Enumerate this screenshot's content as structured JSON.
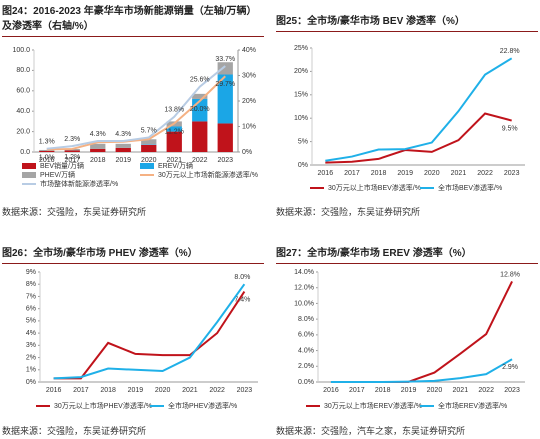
{
  "chart_data": [
    {
      "type": "bar",
      "title": "图24：2016-2023 年豪华车市场新能源销量（左轴/万辆）及渗透率（右轴/%）",
      "source": "数据来源：交强险，东吴证券研究所",
      "categories": [
        "2016",
        "2017",
        "2018",
        "2019",
        "2020",
        "2021",
        "2022",
        "2023"
      ],
      "series": [
        {
          "name": "BEV销量/万辆",
          "color": "#c0131b",
          "values": [
            1,
            1.5,
            3,
            4,
            7,
            20,
            30,
            28
          ]
        },
        {
          "name": "EREV/万辆",
          "color": "#1ba6e6",
          "values": [
            0,
            0,
            0,
            0,
            0.5,
            5,
            22,
            48
          ]
        },
        {
          "name": "PHEV/万辆",
          "color": "#a5a5a5",
          "values": [
            1,
            1.5,
            5,
            4,
            5,
            5,
            5,
            12
          ]
        },
        {
          "name": "30万元以上市场新能源渗透率/%",
          "type": "line",
          "axis": "y2",
          "color": "#f5b183",
          "values": [
            1.0,
            1.2,
            3.8,
            4.0,
            5.0,
            11.2,
            20.0,
            29.7
          ],
          "value_labels": [
            "1.0%",
            "1.2%",
            null,
            null,
            null,
            "11.2%",
            "20.0%",
            "29.7%"
          ]
        },
        {
          "name": "市场整体新能源渗透率/%",
          "type": "line",
          "axis": "y2",
          "color": "#b8cce4",
          "values": [
            1.3,
            2.3,
            4.3,
            4.3,
            5.7,
            13.8,
            25.6,
            33.7
          ],
          "value_labels": [
            "1.3%",
            "2.3%",
            "4.3%",
            "4.3%",
            "5.7%",
            "13.8%",
            "25.6%",
            "33.7%"
          ]
        }
      ],
      "ylim": [
        0,
        100
      ],
      "yticks": [
        {
          "value": 0,
          "label": "0.0"
        },
        {
          "value": 20,
          "label": "20.0"
        },
        {
          "value": 40,
          "label": "40.0"
        },
        {
          "value": 60,
          "label": "60.0"
        },
        {
          "value": 80,
          "label": "80.0"
        },
        {
          "value": 100,
          "label": "100.0"
        }
      ],
      "y2lim": [
        0,
        40
      ],
      "y2ticks": [
        {
          "value": 0,
          "label": "0%"
        },
        {
          "value": 10,
          "label": "10%"
        },
        {
          "value": 20,
          "label": "20%"
        },
        {
          "value": 30,
          "label": "30%"
        },
        {
          "value": 40,
          "label": "40%"
        }
      ],
      "grid": false
    },
    {
      "type": "line",
      "title": "图25：全市场/豪华市场 BEV 渗透率（%）",
      "source": "数据来源：交强险，东吴证券研究所",
      "categories": [
        "2016",
        "2017",
        "2018",
        "2019",
        "2020",
        "2021",
        "2022",
        "2023"
      ],
      "series": [
        {
          "name": "30万元以上市场BEV渗透率/%",
          "color": "#c0131b",
          "values": [
            0.5,
            0.7,
            1.3,
            3.2,
            2.8,
            5.3,
            11.0,
            9.5
          ],
          "value_labels": [
            null,
            null,
            null,
            null,
            null,
            null,
            null,
            "9.5%"
          ]
        },
        {
          "name": "全市场BEV渗透率/%",
          "color": "#1fb0e8",
          "values": [
            0.9,
            1.8,
            3.3,
            3.4,
            4.8,
            11.5,
            19.3,
            22.8
          ],
          "value_labels": [
            null,
            null,
            null,
            null,
            null,
            null,
            null,
            "22.8%"
          ]
        }
      ],
      "ylim": [
        0,
        25
      ],
      "yticks": [
        {
          "value": 0,
          "label": "0%"
        },
        {
          "value": 5,
          "label": "5%"
        },
        {
          "value": 10,
          "label": "10%"
        },
        {
          "value": 15,
          "label": "15%"
        },
        {
          "value": 20,
          "label": "20%"
        },
        {
          "value": 25,
          "label": "25%"
        }
      ],
      "grid": false
    },
    {
      "type": "line",
      "title": "图26：全市场/豪华市场 PHEV 渗透率（%）",
      "source": "数据来源：交强险，东吴证券研究所",
      "categories": [
        "2016",
        "2017",
        "2018",
        "2019",
        "2020",
        "2021",
        "2022",
        "2023"
      ],
      "series": [
        {
          "name": "30万元以上市场PHEV渗透率/%",
          "color": "#c0131b",
          "values": [
            0.3,
            0.3,
            3.2,
            2.3,
            2.2,
            2.2,
            4.0,
            7.4
          ],
          "value_labels": [
            null,
            null,
            null,
            null,
            null,
            null,
            null,
            "7.4%"
          ]
        },
        {
          "name": "全市场PHEV渗透率/%",
          "color": "#1fb0e8",
          "values": [
            0.3,
            0.4,
            1.1,
            1.0,
            0.9,
            2.0,
            4.9,
            8.0
          ],
          "value_labels": [
            null,
            null,
            null,
            null,
            null,
            null,
            null,
            "8.0%"
          ]
        }
      ],
      "ylim": [
        0,
        9
      ],
      "yticks": [
        {
          "value": 0,
          "label": "0%"
        },
        {
          "value": 1,
          "label": "1%"
        },
        {
          "value": 2,
          "label": "2%"
        },
        {
          "value": 3,
          "label": "3%"
        },
        {
          "value": 4,
          "label": "4%"
        },
        {
          "value": 5,
          "label": "5%"
        },
        {
          "value": 6,
          "label": "6%"
        },
        {
          "value": 7,
          "label": "7%"
        },
        {
          "value": 8,
          "label": "8%"
        },
        {
          "value": 9,
          "label": "9%"
        }
      ],
      "grid": false
    },
    {
      "type": "line",
      "title": "图27：全市场/豪华市场 EREV 渗透率（%）",
      "source": "数据来源：交强险，汽车之家，东吴证券研究所",
      "categories": [
        "2016",
        "2017",
        "2018",
        "2019",
        "2020",
        "2021",
        "2022",
        "2023"
      ],
      "series": [
        {
          "name": "30万元以上市场EREV渗透率/%",
          "color": "#c0131b",
          "values": [
            0,
            0,
            0,
            0.02,
            1.2,
            3.6,
            6.1,
            12.8
          ],
          "value_labels": [
            null,
            null,
            null,
            null,
            null,
            null,
            null,
            "12.8%"
          ]
        },
        {
          "name": "全市场EREV渗透率/%",
          "color": "#1fb0e8",
          "values": [
            0,
            0,
            0,
            0.05,
            0.15,
            0.5,
            1.0,
            2.9
          ],
          "value_labels": [
            null,
            null,
            null,
            null,
            null,
            null,
            null,
            "2.9%"
          ]
        }
      ],
      "ylim": [
        0,
        14
      ],
      "yticks": [
        {
          "value": 0,
          "label": "0.0%"
        },
        {
          "value": 2,
          "label": "2.0%"
        },
        {
          "value": 4,
          "label": "4.0%"
        },
        {
          "value": 6,
          "label": "6.0%"
        },
        {
          "value": 8,
          "label": "8.0%"
        },
        {
          "value": 10,
          "label": "10.0%"
        },
        {
          "value": 12,
          "label": "12.0%"
        },
        {
          "value": 14,
          "label": "14.0%"
        }
      ],
      "grid": false
    }
  ]
}
